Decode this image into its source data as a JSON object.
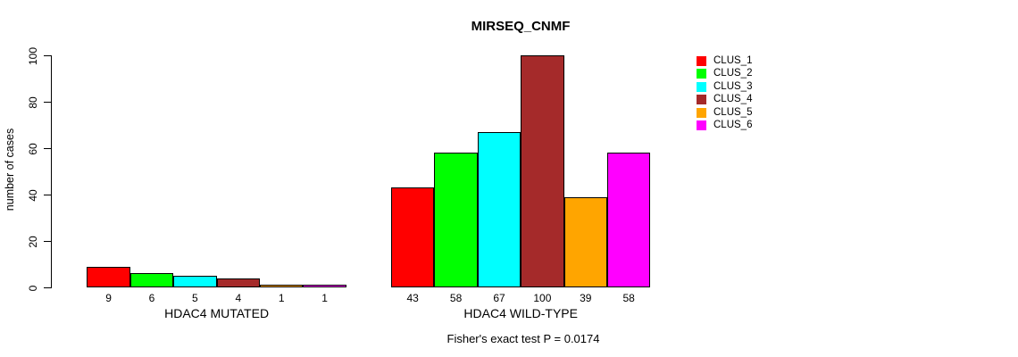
{
  "chart_data": {
    "type": "bar",
    "title": "MIRSEQ_CNMF",
    "ylabel": "number of cases",
    "xlabel": "",
    "ylim": [
      0,
      100
    ],
    "yticks": [
      0,
      20,
      40,
      60,
      80,
      100
    ],
    "grid": false,
    "legend_position": "right",
    "categories": [
      "HDAC4 MUTATED",
      "HDAC4 WILD-TYPE"
    ],
    "series": [
      {
        "name": "CLUS_1",
        "color": "#FF0000",
        "values": [
          9,
          43
        ]
      },
      {
        "name": "CLUS_2",
        "color": "#00FF00",
        "values": [
          6,
          58
        ]
      },
      {
        "name": "CLUS_3",
        "color": "#00FFFF",
        "values": [
          5,
          67
        ]
      },
      {
        "name": "CLUS_4",
        "color": "#A52A2A",
        "values": [
          4,
          100
        ]
      },
      {
        "name": "CLUS_5",
        "color": "#FFA500",
        "values": [
          1,
          39
        ]
      },
      {
        "name": "CLUS_6",
        "color": "#FF00FF",
        "values": [
          1,
          58
        ]
      }
    ],
    "annotation": "Fisher's exact test P = 0.0174"
  }
}
